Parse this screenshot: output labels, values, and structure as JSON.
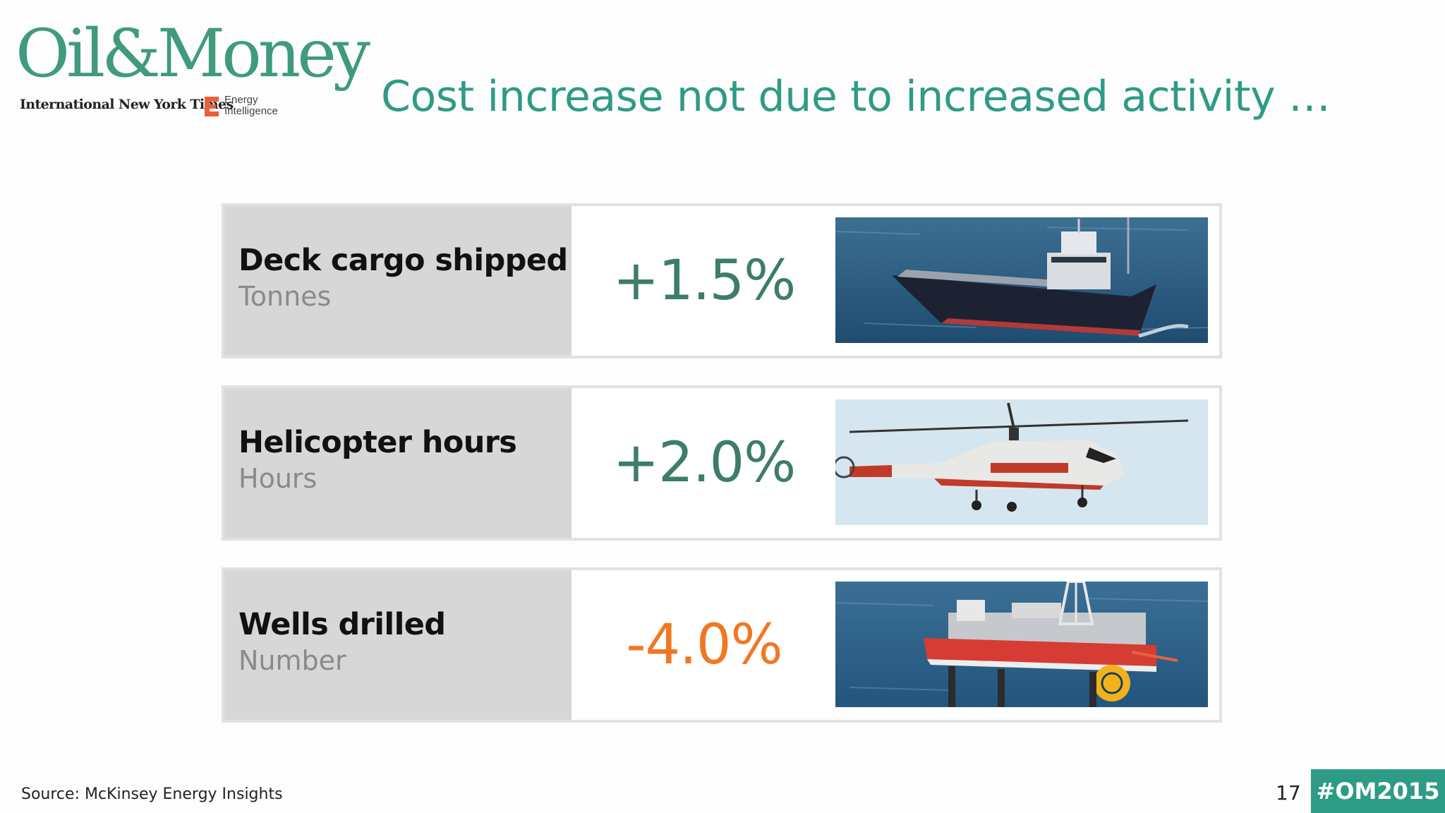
{
  "logo": {
    "brand": "Oil&Money",
    "partner_1": "International New York Times",
    "partner_2_line_1": "Energy",
    "partner_2_line_2": "Intelligence"
  },
  "title": "Cost increase not due to increased activity …",
  "rows": [
    {
      "label": "Deck cargo shipped",
      "unit": "Tonnes",
      "value": "+1.5%",
      "value_color": "#3d7d69",
      "photo": "supply-vessel-photo"
    },
    {
      "label": "Helicopter hours",
      "unit": "Hours",
      "value": "+2.0%",
      "value_color": "#3d7d69",
      "photo": "helicopter-photo"
    },
    {
      "label": "Wells drilled",
      "unit": "Number",
      "value": "-4.0%",
      "value_color": "#f07823",
      "photo": "offshore-rig-photo"
    }
  ],
  "footer": {
    "source": "Source: McKinsey Energy Insights",
    "page_number": "17",
    "hashtag": "#OM2015"
  },
  "colors": {
    "brand_teal": "#2e9b86",
    "positive": "#3d7d69",
    "negative": "#f07823"
  }
}
